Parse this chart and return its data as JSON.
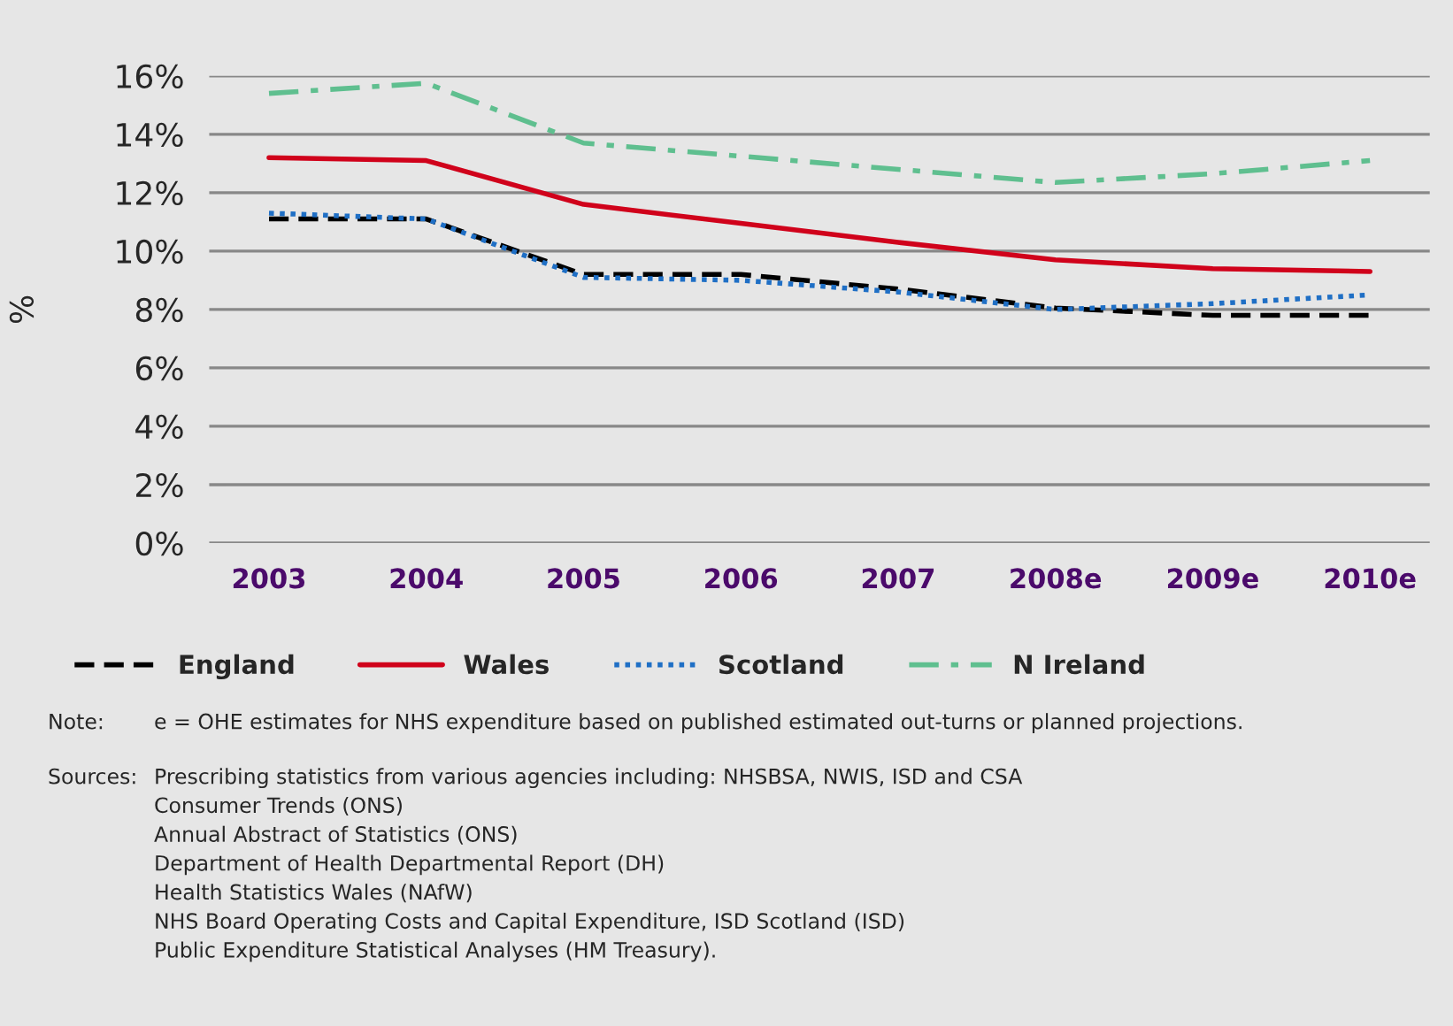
{
  "chart_data": {
    "type": "line",
    "ylabel": "%",
    "categories": [
      "2003",
      "2004",
      "2005",
      "2006",
      "2007",
      "2008e",
      "2009e",
      "2010e"
    ],
    "series": [
      {
        "name": "England",
        "color": "#000000",
        "line_style": "dashed",
        "values": [
          11.1,
          11.1,
          9.2,
          9.2,
          8.7,
          8.05,
          7.8,
          7.8
        ]
      },
      {
        "name": "Wales",
        "color": "#d0021b",
        "line_style": "solid",
        "values": [
          13.2,
          13.1,
          11.6,
          10.95,
          10.3,
          9.7,
          9.4,
          9.3
        ]
      },
      {
        "name": "Scotland",
        "color": "#1f6fc5",
        "line_style": "dotted",
        "values": [
          11.3,
          11.1,
          9.1,
          9.0,
          8.6,
          8.0,
          8.2,
          8.5
        ]
      },
      {
        "name": "N Ireland",
        "color": "#5fbf8f",
        "line_style": "dashdot",
        "values": [
          15.4,
          15.75,
          13.7,
          13.25,
          12.8,
          12.35,
          12.65,
          13.1
        ]
      }
    ],
    "ylim": [
      0,
      16
    ],
    "yticks": [
      {
        "value": 0,
        "label": "0%"
      },
      {
        "value": 2,
        "label": "2%"
      },
      {
        "value": 4,
        "label": "4%"
      },
      {
        "value": 6,
        "label": "6%"
      },
      {
        "value": 8,
        "label": "8%"
      },
      {
        "value": 10,
        "label": "10%"
      },
      {
        "value": 12,
        "label": "12%"
      },
      {
        "value": 14,
        "label": "14%"
      },
      {
        "value": 16,
        "label": "16%"
      }
    ],
    "grid": "y",
    "legend": "bottom",
    "marker": "none",
    "annotations": [
      "Note: e = OHE estimates for NHS expenditure based on published estimated out-turns or planned projections.",
      "Sources: Prescribing statistics from various agencies including: NHSBSA, NWIS, ISD and CSA\nConsumer Trends (ONS)\nAnnual Abstract of Statistics (ONS)\nDepartment of Health Departmental Report (DH)\nHealth Statistics Wales (NAfW)\nNHS Board Operating Costs and Capital Expenditure, ISD Scotland (ISD)\nPublic Expenditure Statistical Analyses (HM Treasury)."
    ]
  }
}
